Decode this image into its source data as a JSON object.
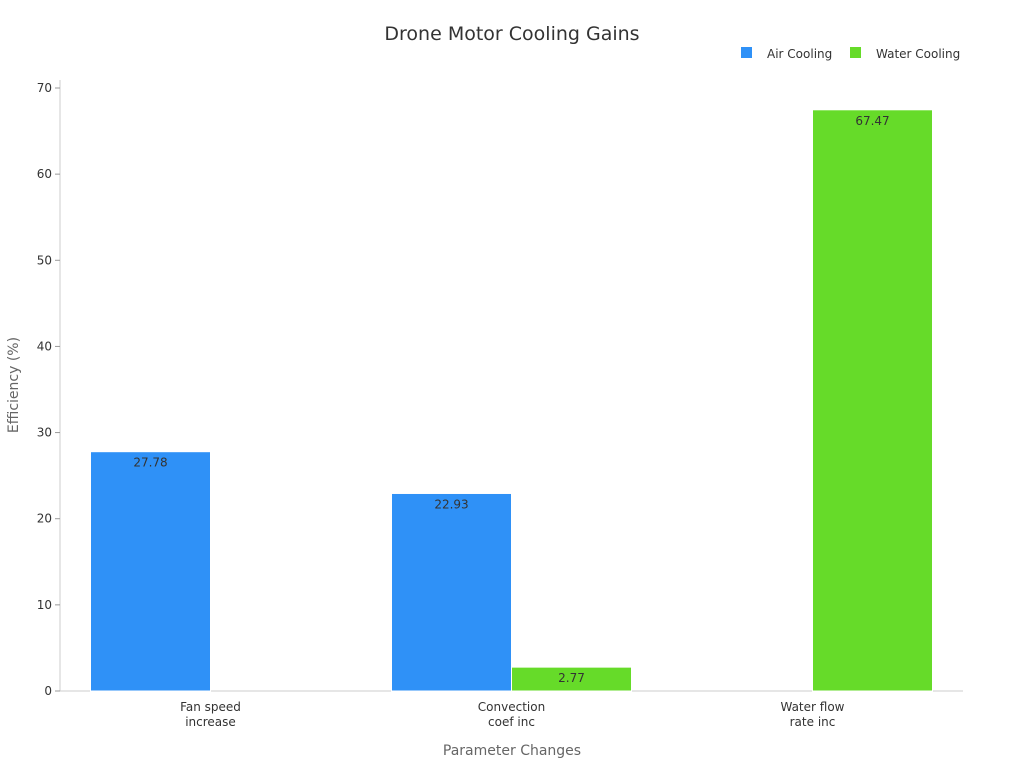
{
  "chart_data": {
    "type": "bar",
    "title": "Drone Motor Cooling Gains",
    "xlabel": "Parameter Changes",
    "ylabel": "Efficiency (%)",
    "categories": [
      [
        "Fan speed",
        "increase"
      ],
      [
        "Convection",
        "coef inc"
      ],
      [
        "Water flow",
        "rate inc"
      ]
    ],
    "series": [
      {
        "name": "Air Cooling",
        "color": "#2f91f7",
        "values": [
          27.78,
          22.93,
          null
        ]
      },
      {
        "name": "Water Cooling",
        "color": "#66db29",
        "values": [
          null,
          2.77,
          67.47
        ]
      }
    ],
    "ylim": [
      0,
      70
    ],
    "yticks": [
      0,
      10,
      20,
      30,
      40,
      50,
      60,
      70
    ],
    "grid": false,
    "legend": "top-right"
  }
}
